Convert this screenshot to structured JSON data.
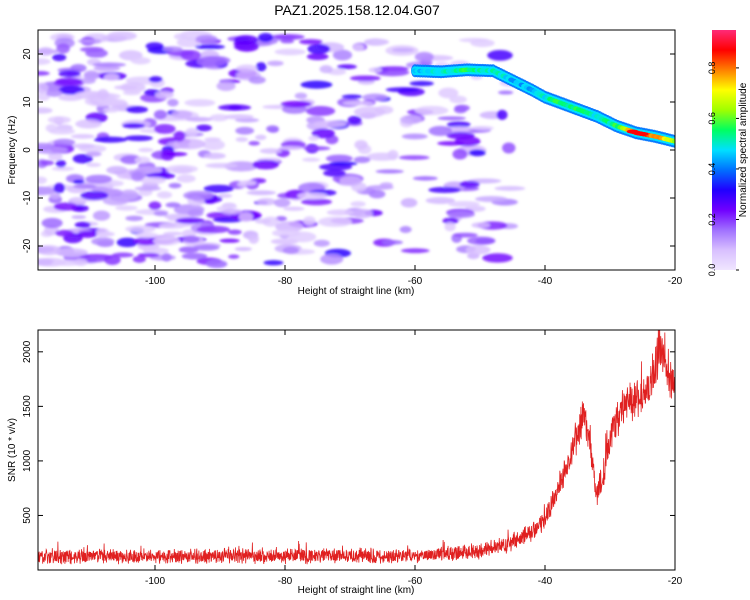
{
  "figure": {
    "title": "PAZ1.2025.158.12.04.G07"
  },
  "chart_data": [
    {
      "type": "heatmap",
      "xlabel": "Height of straight line (km)",
      "ylabel": "Frequency (Hz)",
      "xlim": [
        -118,
        -20
      ],
      "ylim": [
        -25,
        25
      ],
      "x_ticks": [
        -100,
        -80,
        -60,
        -40,
        -20
      ],
      "y_ticks": [
        -20,
        -10,
        0,
        10,
        20
      ],
      "colorbar": {
        "label": "Normalized spectral amplitude",
        "range": [
          0,
          0.95
        ],
        "ticks": [
          0.0,
          0.2,
          0.4,
          0.6,
          0.8
        ],
        "colormap": [
          "#f0e6ff",
          "#d8bfff",
          "#a070ff",
          "#7000ff",
          "#2000ff",
          "#0070ff",
          "#00e0ff",
          "#00ff60",
          "#a0ff00",
          "#ffff00",
          "#ff8000",
          "#ff0000",
          "#ff2a78"
        ]
      },
      "ridge": {
        "x": [
          -60,
          -56,
          -52,
          -48,
          -45,
          -42,
          -40,
          -38,
          -35,
          -32,
          -29,
          -26,
          -23,
          -20
        ],
        "freq": [
          16.5,
          16.3,
          16.7,
          16.5,
          14.5,
          12.5,
          11,
          10,
          8.5,
          7,
          5,
          3.6,
          2.8,
          1.8
        ],
        "amplitude": [
          0.45,
          0.5,
          0.55,
          0.5,
          0.45,
          0.45,
          0.5,
          0.55,
          0.55,
          0.5,
          0.55,
          0.85,
          0.8,
          0.65
        ]
      },
      "grid": false
    },
    {
      "type": "line",
      "xlabel": "Height of straight line (km)",
      "ylabel": "SNR (10 * v/v)",
      "xlim": [
        -118,
        -20
      ],
      "ylim": [
        0,
        2200
      ],
      "x_ticks": [
        -100,
        -80,
        -60,
        -40,
        -20
      ],
      "y_ticks": [
        500,
        1000,
        1500,
        2000
      ],
      "color": "#e02020",
      "envelope": {
        "x": [
          -118,
          -60,
          -50,
          -45,
          -42,
          -40,
          -38,
          -36,
          -35,
          -34,
          -33,
          -32,
          -31,
          -30,
          -28,
          -26,
          -24,
          -23,
          -22,
          -21,
          -20
        ],
        "y": [
          120,
          130,
          170,
          250,
          350,
          450,
          750,
          1050,
          1250,
          1450,
          1100,
          700,
          900,
          1200,
          1500,
          1550,
          1700,
          1900,
          2000,
          1750,
          1700
        ]
      },
      "noise_amplitude": 55,
      "grid": false
    }
  ]
}
